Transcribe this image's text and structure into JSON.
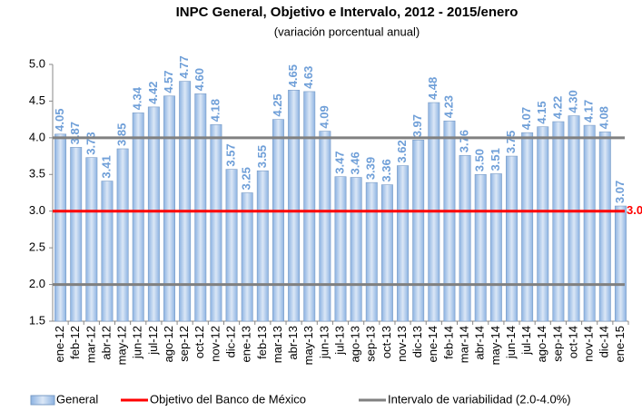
{
  "chart_data": {
    "type": "bar",
    "title": "INPC General, Objetivo e Intervalo, 2012 - 2015/enero",
    "subtitle": "(variación porcentual anual)",
    "categories": [
      "ene-12",
      "feb-12",
      "mar-12",
      "abr-12",
      "may-12",
      "jun-12",
      "jul-12",
      "ago-12",
      "sep-12",
      "oct-12",
      "nov-12",
      "dic-12",
      "ene-13",
      "feb-13",
      "mar-13",
      "abr-13",
      "may-13",
      "jun-13",
      "jul-13",
      "ago-13",
      "sep-13",
      "oct-13",
      "nov-13",
      "dic-13",
      "ene-14",
      "feb-14",
      "mar-14",
      "abr-14",
      "may-14",
      "jun-14",
      "jul-14",
      "ago-14",
      "sep-14",
      "oct-14",
      "nov-14",
      "dic-14",
      "ene-15"
    ],
    "series": [
      {
        "name": "General",
        "color": "#8db3e2",
        "values": [
          4.05,
          3.87,
          3.73,
          3.41,
          3.85,
          4.34,
          4.42,
          4.57,
          4.77,
          4.6,
          4.18,
          3.57,
          3.25,
          3.55,
          4.25,
          4.65,
          4.63,
          4.09,
          3.47,
          3.46,
          3.39,
          3.36,
          3.62,
          3.97,
          4.48,
          4.23,
          3.76,
          3.5,
          3.51,
          3.75,
          4.07,
          4.15,
          4.22,
          4.3,
          4.17,
          4.08,
          3.07
        ],
        "value_labels": [
          "4.05",
          "3.87",
          "3.73",
          "3.41",
          "3.85",
          "4.34",
          "4.42",
          "4.57",
          "4.77",
          "4.60",
          "4.18",
          "3.57",
          "3.25",
          "3.55",
          "4.25",
          "4.65",
          "4.63",
          "4.09",
          "3.47",
          "3.46",
          "3.39",
          "3.36",
          "3.62",
          "3.97",
          "4.48",
          "4.23",
          "3.76",
          "3.50",
          "3.51",
          "3.75",
          "4.07",
          "4.15",
          "4.22",
          "4.30",
          "4.17",
          "4.08",
          "3.07"
        ]
      }
    ],
    "lines": [
      {
        "name": "Objetivo del Banco de México",
        "color": "#ff0000",
        "values": [
          3.0
        ],
        "value_labels": [
          "3.0"
        ]
      },
      {
        "name": "Intervalo de variabilidad (2.0-4.0%)",
        "color": "#808080",
        "values": [
          2.0,
          4.0
        ]
      }
    ],
    "ylim": [
      1.5,
      5.0
    ],
    "yticks": [
      {
        "value": 1.5,
        "label": "1.5"
      },
      {
        "value": 2.0,
        "label": "2.0"
      },
      {
        "value": 2.5,
        "label": "2.5"
      },
      {
        "value": 3.0,
        "label": "3.0"
      },
      {
        "value": 3.5,
        "label": "3.5"
      },
      {
        "value": 4.0,
        "label": "4.0"
      },
      {
        "value": 4.5,
        "label": "4.5"
      },
      {
        "value": 5.0,
        "label": "5.0"
      }
    ]
  }
}
